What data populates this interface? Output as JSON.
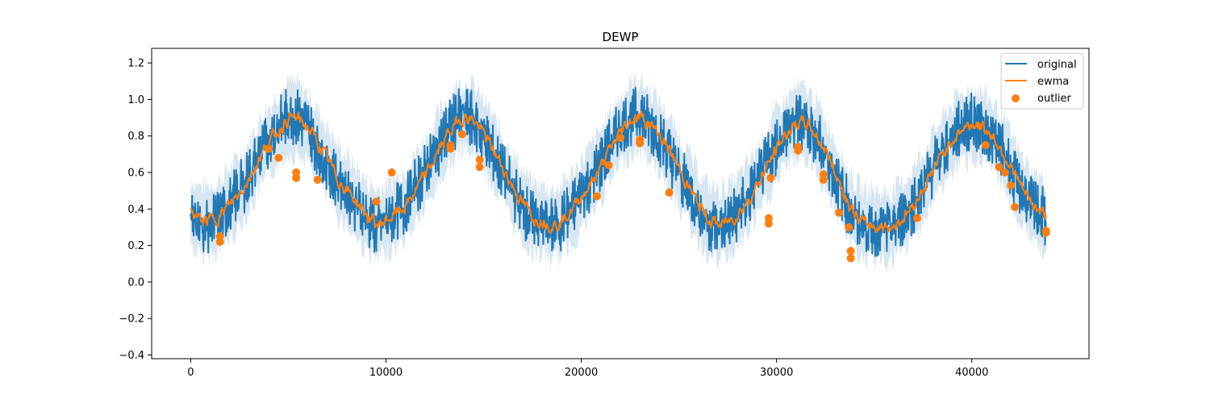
{
  "chart_data": {
    "type": "line",
    "title": "DEWP",
    "xlabel": "",
    "ylabel": "",
    "xlim": [
      -2000,
      46000
    ],
    "ylim": [
      -0.42,
      1.28
    ],
    "x_ticks": [
      0,
      10000,
      20000,
      30000,
      40000
    ],
    "x_tick_labels": [
      "0",
      "10000",
      "20000",
      "30000",
      "40000"
    ],
    "y_ticks": [
      -0.4,
      -0.2,
      0.0,
      0.2,
      0.4,
      0.6,
      0.8,
      1.0,
      1.2
    ],
    "y_tick_labels": [
      "−0.4",
      "−0.2",
      "0.0",
      "0.2",
      "0.4",
      "0.6",
      "0.8",
      "1.0",
      "1.2"
    ],
    "grid": false,
    "legend_position": "top-right",
    "legend": [
      {
        "label": "original",
        "kind": "line"
      },
      {
        "label": "ewma",
        "kind": "line"
      },
      {
        "label": "outlier",
        "kind": "marker"
      }
    ],
    "colors": {
      "original": "#1f77b4",
      "ewma": "#ff7f0e",
      "outlier": "#ff7f0e",
      "band": "#1f77b4"
    },
    "series": [
      {
        "name": "original",
        "x": [
          0,
          500,
          1000,
          1500,
          2000,
          2500,
          3000,
          3500,
          4000,
          4500,
          5000,
          5500,
          6000,
          6500,
          7000,
          7500,
          8000,
          8500,
          9000,
          9500,
          10000,
          10500,
          11000,
          11500,
          12000,
          12500,
          13000,
          13500,
          14000,
          14500,
          15000,
          15500,
          16000,
          16500,
          17000,
          17500,
          18000,
          18500,
          19000,
          19500,
          20000,
          20500,
          21000,
          21500,
          22000,
          22500,
          23000,
          23500,
          24000,
          24500,
          25000,
          25500,
          26000,
          26500,
          27000,
          27500,
          28000,
          28500,
          29000,
          29500,
          30000,
          30500,
          31000,
          31500,
          32000,
          32500,
          33000,
          33500,
          34000,
          34500,
          35000,
          35500,
          36000,
          36500,
          37000,
          37500,
          38000,
          38500,
          39000,
          39500,
          40000,
          40500,
          41000,
          41500,
          42000,
          42500,
          43000,
          43500,
          43800
        ],
        "values": [
          0.4,
          0.3,
          0.32,
          0.35,
          0.42,
          0.5,
          0.58,
          0.7,
          0.78,
          0.85,
          0.92,
          0.9,
          0.85,
          0.74,
          0.65,
          0.55,
          0.5,
          0.42,
          0.35,
          0.3,
          0.33,
          0.38,
          0.42,
          0.52,
          0.6,
          0.7,
          0.8,
          0.88,
          0.92,
          0.88,
          0.8,
          0.7,
          0.6,
          0.5,
          0.4,
          0.34,
          0.33,
          0.3,
          0.33,
          0.4,
          0.48,
          0.55,
          0.65,
          0.75,
          0.84,
          0.9,
          0.92,
          0.86,
          0.8,
          0.7,
          0.6,
          0.5,
          0.4,
          0.33,
          0.3,
          0.32,
          0.38,
          0.45,
          0.55,
          0.65,
          0.75,
          0.83,
          0.88,
          0.88,
          0.8,
          0.7,
          0.58,
          0.45,
          0.35,
          0.3,
          0.3,
          0.28,
          0.3,
          0.36,
          0.42,
          0.52,
          0.62,
          0.72,
          0.8,
          0.85,
          0.88,
          0.86,
          0.8,
          0.72,
          0.62,
          0.5,
          0.42,
          0.38,
          0.35
        ]
      },
      {
        "name": "ewma",
        "x": [
          0,
          500,
          1000,
          1500,
          2000,
          2500,
          3000,
          3500,
          4000,
          4500,
          5000,
          5500,
          6000,
          6500,
          7000,
          7500,
          8000,
          8500,
          9000,
          9500,
          10000,
          10500,
          11000,
          11500,
          12000,
          12500,
          13000,
          13500,
          14000,
          14500,
          15000,
          15500,
          16000,
          16500,
          17000,
          17500,
          18000,
          18500,
          19000,
          19500,
          20000,
          20500,
          21000,
          21500,
          22000,
          22500,
          23000,
          23500,
          24000,
          24500,
          25000,
          25500,
          26000,
          26500,
          27000,
          27500,
          28000,
          28500,
          29000,
          29500,
          30000,
          30500,
          31000,
          31500,
          32000,
          32500,
          33000,
          33500,
          34000,
          34500,
          35000,
          35500,
          36000,
          36500,
          37000,
          37500,
          38000,
          38500,
          39000,
          39500,
          40000,
          40500,
          41000,
          41500,
          42000,
          42500,
          43000,
          43500,
          43800
        ],
        "values": [
          0.38,
          0.33,
          0.34,
          0.37,
          0.43,
          0.5,
          0.58,
          0.69,
          0.77,
          0.84,
          0.9,
          0.89,
          0.84,
          0.75,
          0.66,
          0.56,
          0.5,
          0.43,
          0.36,
          0.31,
          0.34,
          0.38,
          0.42,
          0.51,
          0.59,
          0.69,
          0.79,
          0.87,
          0.91,
          0.88,
          0.8,
          0.71,
          0.61,
          0.51,
          0.42,
          0.35,
          0.34,
          0.31,
          0.34,
          0.4,
          0.48,
          0.55,
          0.64,
          0.74,
          0.83,
          0.89,
          0.91,
          0.86,
          0.8,
          0.71,
          0.61,
          0.51,
          0.41,
          0.34,
          0.31,
          0.33,
          0.38,
          0.45,
          0.54,
          0.64,
          0.74,
          0.82,
          0.87,
          0.87,
          0.8,
          0.71,
          0.59,
          0.46,
          0.36,
          0.31,
          0.31,
          0.3,
          0.31,
          0.36,
          0.43,
          0.52,
          0.62,
          0.71,
          0.79,
          0.84,
          0.87,
          0.85,
          0.8,
          0.72,
          0.62,
          0.51,
          0.43,
          0.38,
          0.36
        ]
      },
      {
        "name": "outlier",
        "points": [
          {
            "x": 1500,
            "y": 0.22
          },
          {
            "x": 1500,
            "y": 0.25
          },
          {
            "x": 4000,
            "y": 0.73
          },
          {
            "x": 4500,
            "y": 0.68
          },
          {
            "x": 5400,
            "y": 0.57
          },
          {
            "x": 5400,
            "y": 0.6
          },
          {
            "x": 6500,
            "y": 0.56
          },
          {
            "x": 9500,
            "y": 0.44
          },
          {
            "x": 10300,
            "y": 0.6
          },
          {
            "x": 13300,
            "y": 0.73
          },
          {
            "x": 13300,
            "y": 0.75
          },
          {
            "x": 13900,
            "y": 0.81
          },
          {
            "x": 14800,
            "y": 0.63
          },
          {
            "x": 14800,
            "y": 0.67
          },
          {
            "x": 20800,
            "y": 0.47
          },
          {
            "x": 21400,
            "y": 0.64
          },
          {
            "x": 22000,
            "y": 0.79
          },
          {
            "x": 23000,
            "y": 0.76
          },
          {
            "x": 23000,
            "y": 0.78
          },
          {
            "x": 24500,
            "y": 0.49
          },
          {
            "x": 29600,
            "y": 0.32
          },
          {
            "x": 29600,
            "y": 0.35
          },
          {
            "x": 29700,
            "y": 0.57
          },
          {
            "x": 31100,
            "y": 0.72
          },
          {
            "x": 31100,
            "y": 0.74
          },
          {
            "x": 32400,
            "y": 0.56
          },
          {
            "x": 32400,
            "y": 0.59
          },
          {
            "x": 33200,
            "y": 0.38
          },
          {
            "x": 33700,
            "y": 0.3
          },
          {
            "x": 33800,
            "y": 0.13
          },
          {
            "x": 33800,
            "y": 0.17
          },
          {
            "x": 37200,
            "y": 0.35
          },
          {
            "x": 40700,
            "y": 0.75
          },
          {
            "x": 41400,
            "y": 0.63
          },
          {
            "x": 41700,
            "y": 0.6
          },
          {
            "x": 42000,
            "y": 0.53
          },
          {
            "x": 42200,
            "y": 0.41
          },
          {
            "x": 43800,
            "y": 0.27
          },
          {
            "x": 43800,
            "y": 0.28
          }
        ]
      }
    ]
  }
}
